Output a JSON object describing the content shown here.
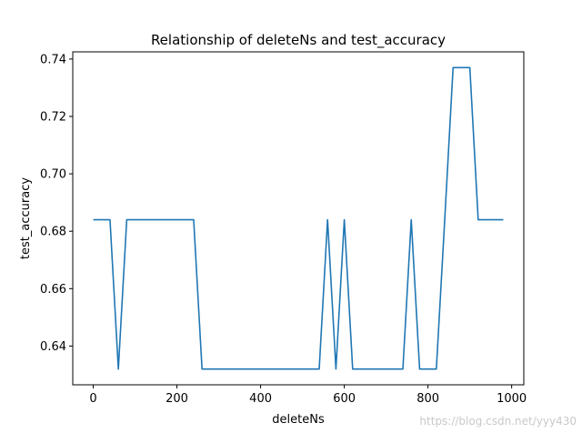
{
  "chart_data": {
    "type": "line",
    "title": "Relationship of deleteNs and test_accuracy",
    "xlabel": "deleteNs",
    "ylabel": "test_accuracy",
    "xlim": [
      -49,
      1029
    ],
    "ylim": [
      0.6265,
      0.7425
    ],
    "xticks": [
      0,
      200,
      400,
      600,
      800,
      1000
    ],
    "yticks": [
      0.64,
      0.66,
      0.68,
      0.7,
      0.72,
      0.74
    ],
    "xtick_labels": [
      "0",
      "200",
      "400",
      "600",
      "800",
      "1000"
    ],
    "ytick_labels": [
      "0.64",
      "0.66",
      "0.68",
      "0.70",
      "0.72",
      "0.74"
    ],
    "grid": false,
    "color": "#1f77b4",
    "x": [
      0,
      20,
      40,
      60,
      80,
      100,
      120,
      140,
      160,
      180,
      200,
      220,
      240,
      260,
      280,
      300,
      320,
      340,
      360,
      380,
      400,
      420,
      440,
      460,
      480,
      500,
      520,
      540,
      560,
      580,
      600,
      620,
      640,
      660,
      680,
      700,
      720,
      740,
      760,
      780,
      800,
      820,
      840,
      860,
      880,
      900,
      920,
      940,
      960,
      980
    ],
    "y": [
      0.684,
      0.684,
      0.684,
      0.632,
      0.684,
      0.684,
      0.684,
      0.684,
      0.684,
      0.684,
      0.684,
      0.684,
      0.684,
      0.632,
      0.632,
      0.632,
      0.632,
      0.632,
      0.632,
      0.632,
      0.632,
      0.632,
      0.632,
      0.632,
      0.632,
      0.632,
      0.632,
      0.632,
      0.684,
      0.632,
      0.684,
      0.632,
      0.632,
      0.632,
      0.632,
      0.632,
      0.632,
      0.632,
      0.684,
      0.632,
      0.632,
      0.632,
      0.684,
      0.737,
      0.737,
      0.737,
      0.684,
      0.684,
      0.684,
      0.684
    ]
  },
  "watermark": "https://blog.csdn.net/yyy430"
}
